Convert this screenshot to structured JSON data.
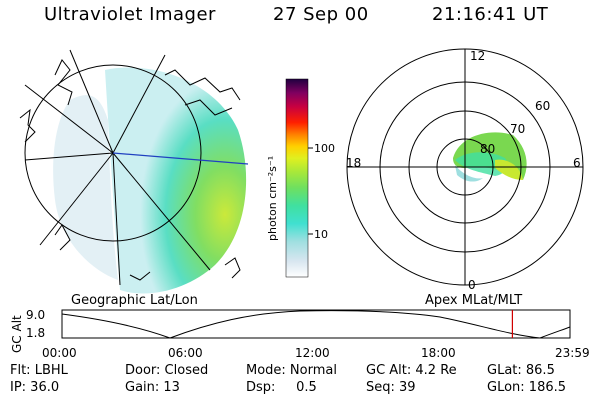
{
  "header": {
    "title": "Ultraviolet Imager",
    "date": "27 Sep 00",
    "time": "21:16:41 UT"
  },
  "left_panel": {
    "label": "Geographic Lat/Lon"
  },
  "right_panel": {
    "label": "Apex MLat/MLT",
    "mlt_labels": {
      "top": "12",
      "bottom": "0",
      "left": "18",
      "right": "6"
    },
    "lat_labels": [
      "60",
      "70",
      "80"
    ]
  },
  "colorbar": {
    "unit_label": "photon cm⁻²s⁻¹",
    "tick_labels": [
      "100",
      "10"
    ],
    "colors": [
      "#ffffff",
      "#d8e6f0",
      "#9fdfe0",
      "#40e0d0",
      "#40e0a0",
      "#6ee060",
      "#a8e83a",
      "#e0f020",
      "#ffd000",
      "#ff8000",
      "#ff2000",
      "#c80040",
      "#800060",
      "#200040"
    ]
  },
  "alt_chart": {
    "y_axis_label": "GC Alt",
    "y_ticks": [
      "9.0",
      "1.8"
    ],
    "x_ticks": [
      "00:00",
      "06:00",
      "12:00",
      "18:00",
      "23:59"
    ],
    "marker_time_fraction": 0.8866,
    "marker_color": "#d00000"
  },
  "info": {
    "row1": [
      "Flt: LBHL",
      "Door: Closed",
      "Mode: Normal",
      "GC Alt: 4.2 Re",
      "GLat: 86.5"
    ],
    "row2": [
      "IP: 36.0",
      "Gain: 13",
      "Dsp:     0.5",
      "Seq: 39",
      "GLon: 186.5"
    ]
  }
}
